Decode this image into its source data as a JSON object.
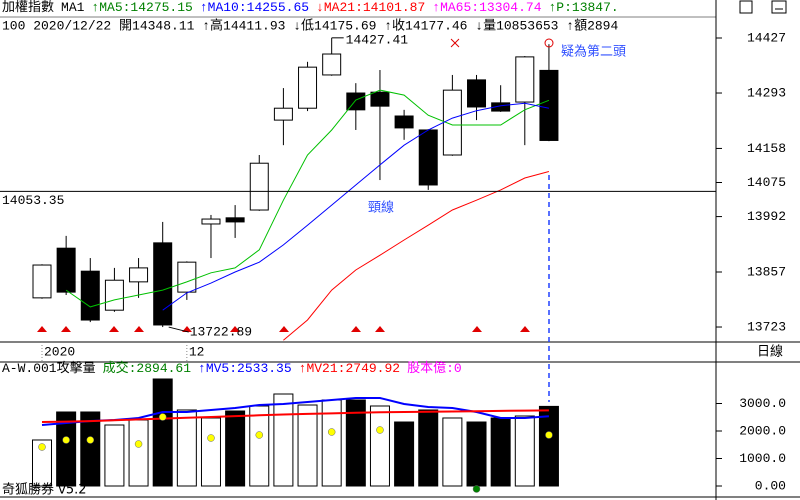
{
  "header": {
    "line1": [
      {
        "text": "加權指數",
        "color": "#000000"
      },
      {
        "text": "MA1",
        "color": "#000000"
      },
      {
        "text": "↑MA5:14275.15",
        "color": "#008000"
      },
      {
        "text": "↑MA10:14255.65",
        "color": "#0000ff"
      },
      {
        "text": "↓MA21:14101.87",
        "color": "#ff0000"
      },
      {
        "text": "↑MA65:13304.74",
        "color": "#ff00ff"
      },
      {
        "text": "↑P:13847.",
        "color": "#008000"
      }
    ],
    "line2": "100 2020/12/22 開14348.11 ↑高14411.93 ↓低14175.69 ↑收14177.46 ↓量10853653 ↑額2894",
    "neckline_label": "頸線",
    "pattern_label": "疑為第二頭",
    "period": "日線",
    "volume_line": [
      {
        "text": "A-W.001攻擊量",
        "color": "#000000"
      },
      {
        "text": "成交:2894.61",
        "color": "#008000"
      },
      {
        "text": "↑MV5:2533.35",
        "color": "#0000ff"
      },
      {
        "text": "↑MV21:2749.92",
        "color": "#ff0000"
      },
      {
        "text": "股本億:0",
        "color": "#ff00ff"
      }
    ],
    "brand": "奇狐勝券 v5.2"
  },
  "chart_data": [
    {
      "type": "candlestick",
      "categories": [
        "2020",
        null,
        null,
        null,
        null,
        null,
        "12",
        null,
        null,
        null,
        null,
        null,
        null,
        null,
        null,
        null,
        null,
        null,
        null,
        null,
        null,
        null
      ],
      "open": [
        13794,
        13915,
        13859,
        13764,
        13833,
        13928,
        13808,
        13974,
        13989,
        14008,
        14227,
        14256,
        14337,
        14293,
        14295,
        14237,
        14203,
        14142,
        14325,
        14269,
        14271,
        14348.11
      ],
      "high": [
        13876,
        13945,
        13891,
        13867,
        13891,
        13979,
        13883,
        13996,
        14020,
        14142,
        14305,
        14369,
        14427.41,
        14317,
        14349,
        14252,
        14205,
        14337,
        14337,
        14312,
        14383,
        14411.93
      ],
      "low": [
        13792,
        13801,
        13735,
        13760,
        13794,
        13722.89,
        13789,
        13891,
        13940,
        14006,
        14166,
        14249,
        14335,
        14203,
        14081,
        14179,
        14057,
        14140,
        14227,
        14247,
        14166,
        14175.69
      ],
      "close": [
        13874,
        13808,
        13740,
        13837,
        13867,
        13728,
        13881,
        13986,
        13979,
        14122,
        14256,
        14356,
        14388,
        14252,
        14261,
        14208,
        14069,
        14300,
        14259,
        14249,
        14381,
        14177.46
      ],
      "series": [
        {
          "color": "#00c000",
          "values": [
            null,
            13813,
            13772,
            13789,
            13801,
            13813,
            13833,
            13855,
            13867,
            13911,
            14032,
            14142,
            14203,
            14276,
            14300,
            14288,
            14239,
            14215,
            14215,
            14215,
            14252,
            14275.15
          ]
        },
        {
          "color": "#0000ff",
          "values": [
            null,
            null,
            null,
            null,
            null,
            13764,
            13806,
            13830,
            13857,
            13881,
            13923,
            13971,
            14020,
            14069,
            14118,
            14166,
            14203,
            14232,
            14250,
            14262,
            14268,
            14255.65
          ]
        },
        {
          "color": "#ff0000",
          "values": [
            null,
            null,
            null,
            null,
            null,
            null,
            null,
            null,
            null,
            null,
            13691,
            13740,
            13813,
            13862,
            13898,
            13935,
            13971,
            14008,
            14032,
            14057,
            14086,
            14101.87
          ]
        }
      ],
      "neckline": 14053.35,
      "ylim": [
        13686.5,
        14446.5
      ],
      "yticks": [
        14427,
        14293,
        14158,
        14075,
        13992,
        13857,
        13723
      ]
    },
    {
      "type": "bar",
      "values": [
        1673,
        2691,
        2691,
        2218,
        2400,
        3891,
        2764,
        2473,
        2727,
        2909,
        3345,
        2945,
        3127,
        3127,
        2909,
        2327,
        2764,
        2473,
        2327,
        2473,
        2545,
        2894.61
      ],
      "colors": [
        "#ffffff",
        "#000000",
        "#000000",
        "#ffffff",
        "#ffffff",
        "#000000",
        "#ffffff",
        "#ffffff",
        "#000000",
        "#ffffff",
        "#ffffff",
        "#ffffff",
        "#ffffff",
        "#000000",
        "#ffffff",
        "#000000",
        "#000000",
        "#ffffff",
        "#000000",
        "#000000",
        "#ffffff",
        "#000000"
      ],
      "series": [
        {
          "color": "#0000ff",
          "values": [
            2218,
            2291,
            2364,
            2400,
            2473,
            2691,
            2691,
            2764,
            2836,
            2945,
            2982,
            3055,
            3127,
            3200,
            3200,
            2982,
            2873,
            2836,
            2691,
            2473,
            2473,
            2533.35
          ]
        },
        {
          "color": "#ff0000",
          "values": [
            2327,
            2340,
            2360,
            2390,
            2420,
            2450,
            2480,
            2510,
            2540,
            2570,
            2600,
            2620,
            2640,
            2660,
            2680,
            2690,
            2700,
            2710,
            2720,
            2730,
            2740,
            2749.92
          ]
        },
        {
          "color": "#ffff00",
          "dots": true,
          "values": [
            1418,
            1673,
            1673,
            null,
            1527,
            2509,
            null,
            1745,
            null,
            1855,
            null,
            null,
            1964,
            null,
            2036,
            null,
            null,
            null,
            null,
            null,
            null,
            1855
          ]
        },
        {
          "color": "#008000",
          "dots": true,
          "values": [
            null,
            null,
            null,
            null,
            null,
            null,
            null,
            null,
            null,
            null,
            null,
            null,
            null,
            null,
            null,
            null,
            null,
            null,
            -109,
            null,
            null,
            null
          ]
        }
      ],
      "ylim": [
        -400,
        4036
      ],
      "yticks": [
        {
          "value": 3000,
          "label": "3000.0"
        },
        {
          "value": 2000,
          "label": "2000.0"
        },
        {
          "value": 1000,
          "label": "1000.0"
        },
        {
          "value": 0,
          "label": "0.00"
        }
      ]
    }
  ]
}
